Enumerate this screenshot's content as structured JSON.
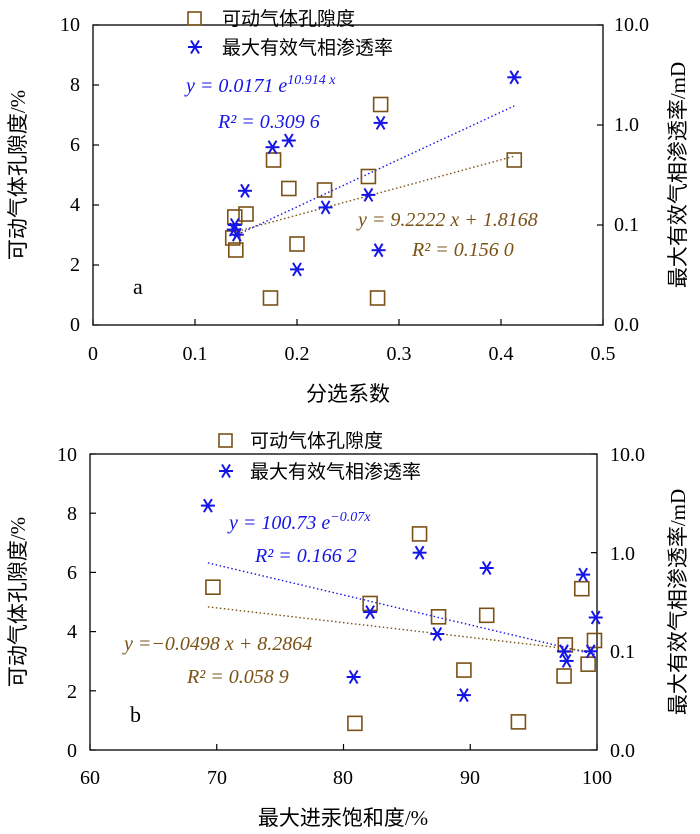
{
  "colors": {
    "porosity": "#7a5216",
    "permeability": "#1515e6",
    "axis": "#000000"
  },
  "chart_data": [
    {
      "type": "scatter",
      "panel_label": "a",
      "xlabel": "分选系数",
      "ylabel_left": "可动气体孔隙度/%",
      "ylabel_right": "最大有效气相渗透率/mD",
      "xlim": [
        0,
        0.5
      ],
      "ylim_left": [
        0,
        10
      ],
      "ylim_right_log": [
        0.01,
        10
      ],
      "x_ticks": [
        "0",
        "0.1",
        "0.2",
        "0.3",
        "0.4",
        "0.5"
      ],
      "y_ticks_left": [
        "0",
        "2",
        "4",
        "6",
        "8",
        "10"
      ],
      "y_ticks_right": [
        "0.0",
        "0.1",
        "1.0",
        "10.0"
      ],
      "legend": [
        "可动气体孔隙度",
        "最大有效气相渗透率"
      ],
      "series": [
        {
          "name": "可动气体孔隙度",
          "marker": "square",
          "axis": "left",
          "points": [
            [
              0.137,
              2.9
            ],
            [
              0.139,
              3.6
            ],
            [
              0.14,
              2.5
            ],
            [
              0.15,
              3.7
            ],
            [
              0.174,
              0.9
            ],
            [
              0.177,
              5.5
            ],
            [
              0.192,
              4.55
            ],
            [
              0.2,
              2.7
            ],
            [
              0.227,
              4.5
            ],
            [
              0.27,
              4.95
            ],
            [
              0.279,
              0.9
            ],
            [
              0.282,
              7.35
            ],
            [
              0.413,
              5.5
            ]
          ]
        },
        {
          "name": "最大有效气相渗透率",
          "marker": "asterisk",
          "axis": "right",
          "points": [
            [
              0.138,
              0.09
            ],
            [
              0.139,
              0.1
            ],
            [
              0.141,
              0.08
            ],
            [
              0.149,
              0.22
            ],
            [
              0.176,
              0.6
            ],
            [
              0.192,
              0.7
            ],
            [
              0.2,
              0.036
            ],
            [
              0.228,
              0.15
            ],
            [
              0.27,
              0.2
            ],
            [
              0.28,
              0.056
            ],
            [
              0.282,
              1.05
            ],
            [
              0.413,
              3.0
            ]
          ]
        }
      ],
      "fits": [
        {
          "series": "最大有效气相渗透率",
          "kind": "exp",
          "a": 0.0171,
          "b": 10.914,
          "x_range": [
            0.138,
            0.413
          ],
          "equation": "y = 0.0171 e",
          "exponent": "10.914 x",
          "r2": "R² = 0.309 6"
        },
        {
          "series": "可动气体孔隙度",
          "kind": "linear",
          "slope": 9.2222,
          "intercept": 1.8168,
          "x_range": [
            0.138,
            0.413
          ],
          "equation": "y = 9.2222 x + 1.8168",
          "r2": "R² = 0.156 0"
        }
      ]
    },
    {
      "type": "scatter",
      "panel_label": "b",
      "xlabel": "最大进汞饱和度/%",
      "ylabel_left": "可动气体孔隙度/%",
      "ylabel_right": "最大有效气相渗透率/mD",
      "xlim": [
        60,
        100
      ],
      "ylim_left": [
        0,
        10
      ],
      "ylim_right_log": [
        0.01,
        10
      ],
      "x_ticks": [
        "60",
        "70",
        "80",
        "90",
        "100"
      ],
      "y_ticks_left": [
        "0",
        "2",
        "4",
        "6",
        "8",
        "10"
      ],
      "y_ticks_right": [
        "0.0",
        "0.1",
        "1.0",
        "10.0"
      ],
      "legend": [
        "可动气体孔隙度",
        "最大有效气相渗透率"
      ],
      "series": [
        {
          "name": "可动气体孔隙度",
          "marker": "square",
          "axis": "left",
          "points": [
            [
              69.7,
              5.5
            ],
            [
              80.9,
              0.9
            ],
            [
              82.1,
              4.95
            ],
            [
              86.0,
              7.3
            ],
            [
              87.5,
              4.5
            ],
            [
              89.5,
              2.7
            ],
            [
              91.3,
              4.55
            ],
            [
              93.8,
              0.95
            ],
            [
              97.5,
              3.55
            ],
            [
              97.4,
              2.5
            ],
            [
              98.8,
              5.45
            ],
            [
              99.3,
              2.9
            ],
            [
              99.8,
              3.7
            ]
          ]
        },
        {
          "name": "最大有效气相渗透率",
          "marker": "asterisk",
          "axis": "right",
          "points": [
            [
              69.3,
              3.0
            ],
            [
              80.8,
              0.055
            ],
            [
              82.1,
              0.25
            ],
            [
              86.0,
              1.0
            ],
            [
              87.4,
              0.15
            ],
            [
              89.5,
              0.036
            ],
            [
              91.3,
              0.7
            ],
            [
              97.4,
              0.1
            ],
            [
              97.6,
              0.08
            ],
            [
              98.9,
              0.6
            ],
            [
              99.5,
              0.1
            ],
            [
              99.9,
              0.22
            ]
          ]
        }
      ],
      "fits": [
        {
          "series": "最大有效气相渗透率",
          "kind": "exp",
          "a": 100.73,
          "b": -0.07,
          "x_range": [
            69.3,
            99.9
          ],
          "equation": "y = 100.73 e",
          "exponent": "−0.07x",
          "r2": "R² = 0.166 2"
        },
        {
          "series": "可动气体孔隙度",
          "kind": "linear",
          "slope": -0.0498,
          "intercept": 8.2864,
          "x_range": [
            69.3,
            99.9
          ],
          "equation": "y =−0.0498 x + 8.2864",
          "r2": "R² = 0.058 9"
        }
      ]
    }
  ]
}
